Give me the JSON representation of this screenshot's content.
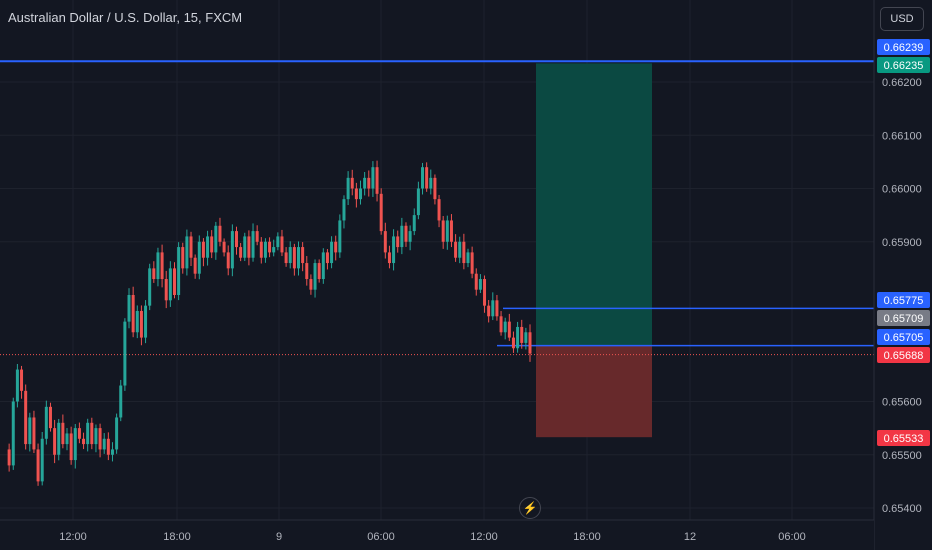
{
  "header": {
    "symbol_title": "Australian Dollar / U.S. Dollar, 15, FXCM",
    "currency_label": "USD",
    "lightning_icon": "lightning-icon"
  },
  "colors": {
    "background": "#131722",
    "up": "#26a69a",
    "down": "#ef5350",
    "level_line": "#2962ff",
    "profit_zone": "#0b4c45",
    "loss_zone": "#6b2a2c",
    "text": "#d1d4dc"
  },
  "chart_data": {
    "type": "candlestick",
    "symbol": "AUDUSD",
    "interval": "15",
    "ylim": [
      0.6539,
      0.6626
    ],
    "y_ticks": [
      "0.66200",
      "0.66100",
      "0.66000",
      "0.65900",
      "0.65600",
      "0.65500",
      "0.65400"
    ],
    "x_ticks": [
      "12:00",
      "18:00",
      "9",
      "06:00",
      "12:00",
      "18:00",
      "12",
      "06:00"
    ],
    "price_labels": [
      {
        "text": "0.66239",
        "value": 0.66239,
        "kind": "level"
      },
      {
        "text": "0.66235",
        "value": 0.66235,
        "kind": "target"
      },
      {
        "text": "0.65775",
        "value": 0.65775,
        "kind": "level"
      },
      {
        "text": "0.65709",
        "value": 0.65709,
        "kind": "neutral"
      },
      {
        "text": "0.65705",
        "value": 0.65705,
        "kind": "level"
      },
      {
        "text": "0.65688",
        "value": 0.65688,
        "kind": "last"
      },
      {
        "text": "0.65533",
        "value": 0.65533,
        "kind": "stop"
      }
    ],
    "horizontal_levels": [
      0.66239,
      0.65775,
      0.65705
    ],
    "last_price": 0.65688,
    "position": {
      "type": "long",
      "entry": 0.65705,
      "target": 0.66235,
      "stop": 0.65533
    },
    "price_path": [
      0.6551,
      0.6548,
      0.656,
      0.6566,
      0.6562,
      0.6552,
      0.6557,
      0.6551,
      0.6545,
      0.6553,
      0.6559,
      0.6555,
      0.655,
      0.6556,
      0.6552,
      0.6554,
      0.6549,
      0.6555,
      0.6553,
      0.6552,
      0.6556,
      0.6552,
      0.6555,
      0.6551,
      0.6553,
      0.655,
      0.6551,
      0.6557,
      0.6563,
      0.6575,
      0.658,
      0.6573,
      0.6577,
      0.6572,
      0.6578,
      0.6585,
      0.6583,
      0.6588,
      0.6583,
      0.6579,
      0.6585,
      0.658,
      0.6589,
      0.6585,
      0.6591,
      0.6587,
      0.6584,
      0.659,
      0.6587,
      0.6591,
      0.6588,
      0.6593,
      0.659,
      0.6588,
      0.6585,
      0.6592,
      0.6589,
      0.6587,
      0.6591,
      0.6587,
      0.6592,
      0.659,
      0.6587,
      0.659,
      0.6588,
      0.6589,
      0.6591,
      0.6588,
      0.6586,
      0.6589,
      0.6585,
      0.6589,
      0.6586,
      0.6583,
      0.6581,
      0.6586,
      0.6583,
      0.6588,
      0.6586,
      0.659,
      0.6588,
      0.6594,
      0.6598,
      0.6602,
      0.66,
      0.6598,
      0.66,
      0.6602,
      0.66,
      0.6604,
      0.6599,
      0.6592,
      0.6588,
      0.6586,
      0.6591,
      0.6589,
      0.6593,
      0.659,
      0.6592,
      0.6595,
      0.66,
      0.6604,
      0.66,
      0.6602,
      0.6598,
      0.6594,
      0.659,
      0.6594,
      0.659,
      0.6587,
      0.659,
      0.6586,
      0.6588,
      0.6584,
      0.6581,
      0.6583,
      0.6578,
      0.6576,
      0.6579,
      0.6576,
      0.6573,
      0.6575,
      0.6572,
      0.657,
      0.6574,
      0.6571,
      0.6573,
      0.6569
    ]
  }
}
